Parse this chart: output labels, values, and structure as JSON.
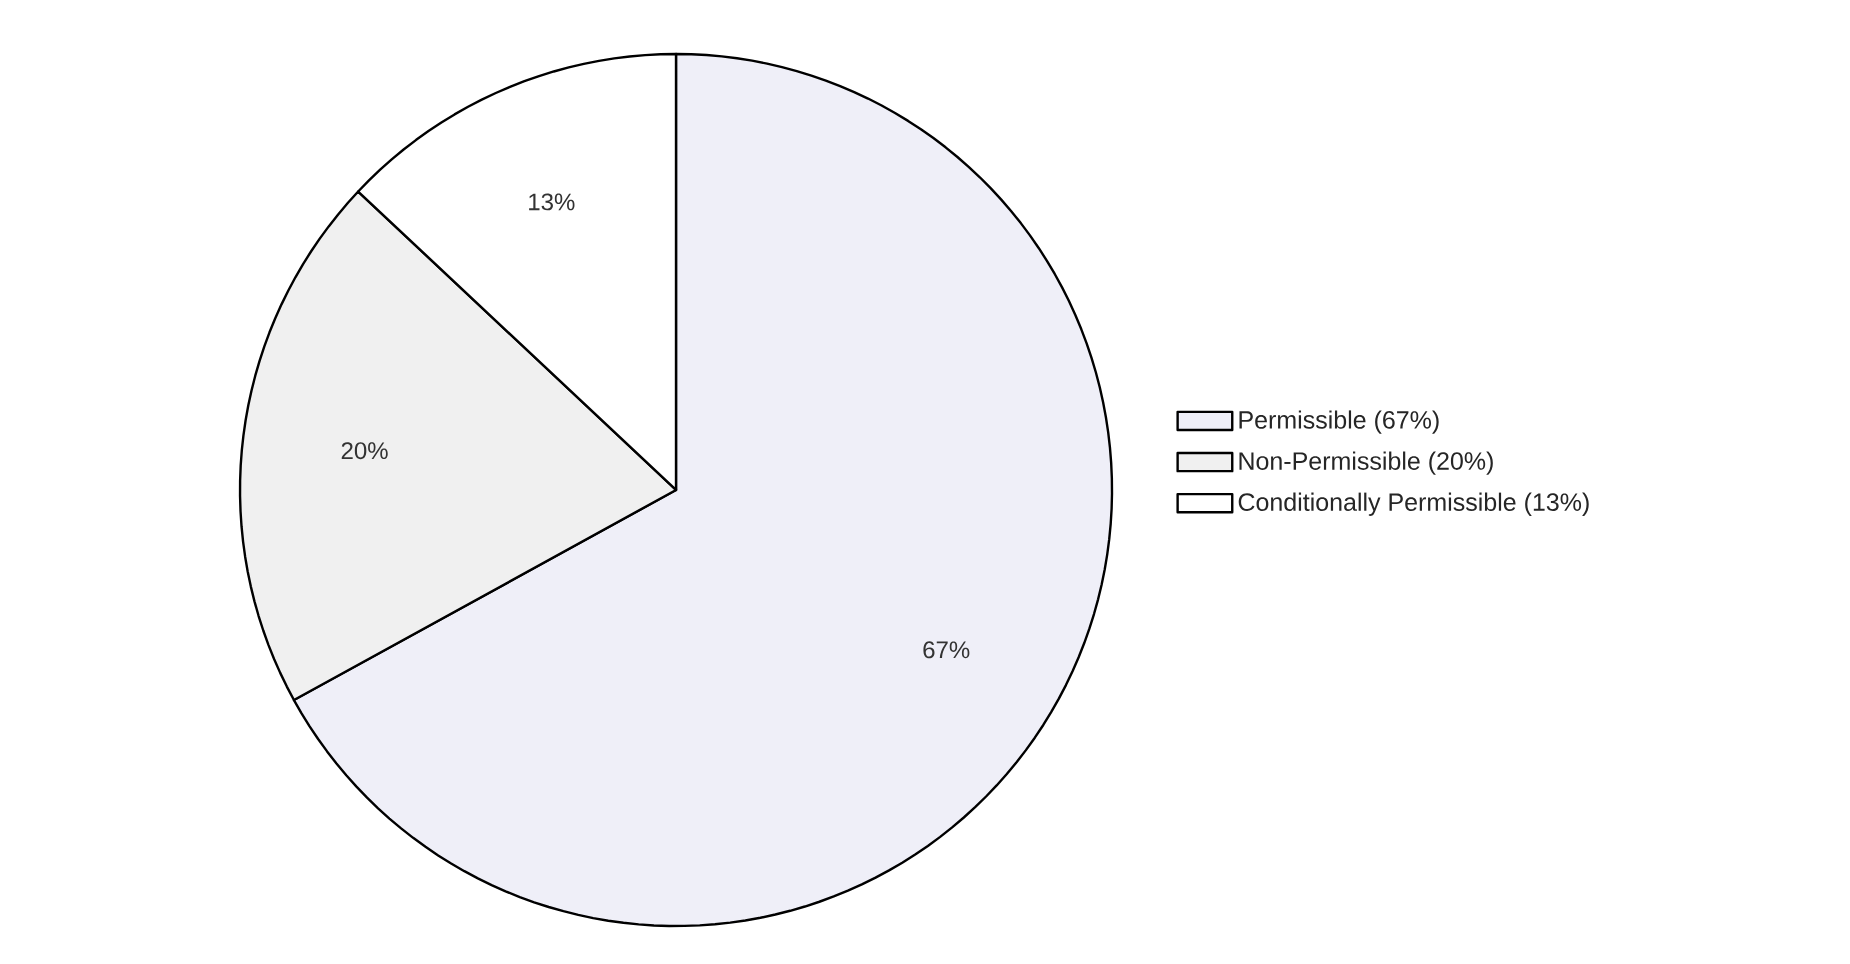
{
  "chart_data": {
    "type": "pie",
    "categories": [
      "Permissible (67%)",
      "Non-Permissible (20%)",
      "Conditionally Permissible (13%)"
    ],
    "values": [
      67,
      20,
      13
    ],
    "colors": [
      "#efeff8",
      "#f0f0f0",
      "#ffffff"
    ],
    "value_labels": [
      "67%",
      "20%",
      "13%"
    ],
    "legend": "right"
  }
}
